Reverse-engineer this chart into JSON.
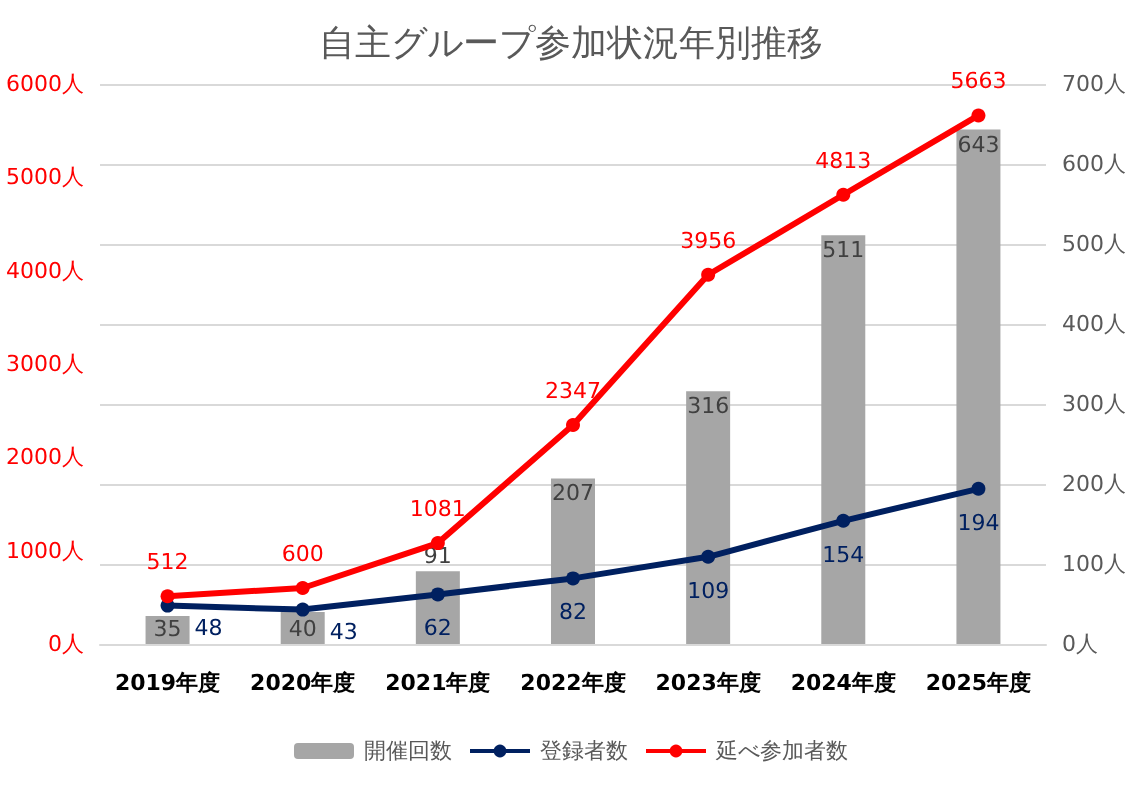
{
  "chart_data": {
    "type": "bar",
    "title": "自主グループ参加状況年別推移",
    "categories": [
      "2019年度",
      "2020年度",
      "2021年度",
      "2022年度",
      "2023年度",
      "2024年度",
      "2025年度"
    ],
    "series": [
      {
        "name": "開催回数",
        "axis": "y2",
        "color": "#a6a6a6",
        "values": [
          35,
          40,
          91,
          207,
          316,
          511,
          643
        ]
      },
      {
        "name": "登録者数",
        "type": "line",
        "axis": "y2",
        "color": "#002060",
        "values": [
          48,
          43,
          62,
          82,
          109,
          154,
          194
        ]
      },
      {
        "name": "延べ参加者数",
        "type": "line",
        "color": "#ff0000",
        "values": [
          512,
          600,
          1081,
          2347,
          3956,
          4813,
          5663
        ]
      }
    ],
    "ylim": [
      0,
      6000
    ],
    "yticks": [
      {
        "value": 0,
        "label": "0人"
      },
      {
        "value": 1000,
        "label": "1000人"
      },
      {
        "value": 2000,
        "label": "2000人"
      },
      {
        "value": 3000,
        "label": "3000人"
      },
      {
        "value": 4000,
        "label": "4000人"
      },
      {
        "value": 5000,
        "label": "5000人"
      },
      {
        "value": 6000,
        "label": "6000人"
      }
    ],
    "y2lim": [
      0,
      700
    ],
    "y2ticks": [
      {
        "value": 0,
        "label": "0人"
      },
      {
        "value": 100,
        "label": "100人"
      },
      {
        "value": 200,
        "label": "200人"
      },
      {
        "value": 300,
        "label": "300人"
      },
      {
        "value": 400,
        "label": "400人"
      },
      {
        "value": 500,
        "label": "500人"
      },
      {
        "value": 600,
        "label": "600人"
      },
      {
        "value": 700,
        "label": "700人"
      }
    ],
    "grid": true,
    "legend": "bottom",
    "marker": "circle",
    "data_labels": true
  }
}
